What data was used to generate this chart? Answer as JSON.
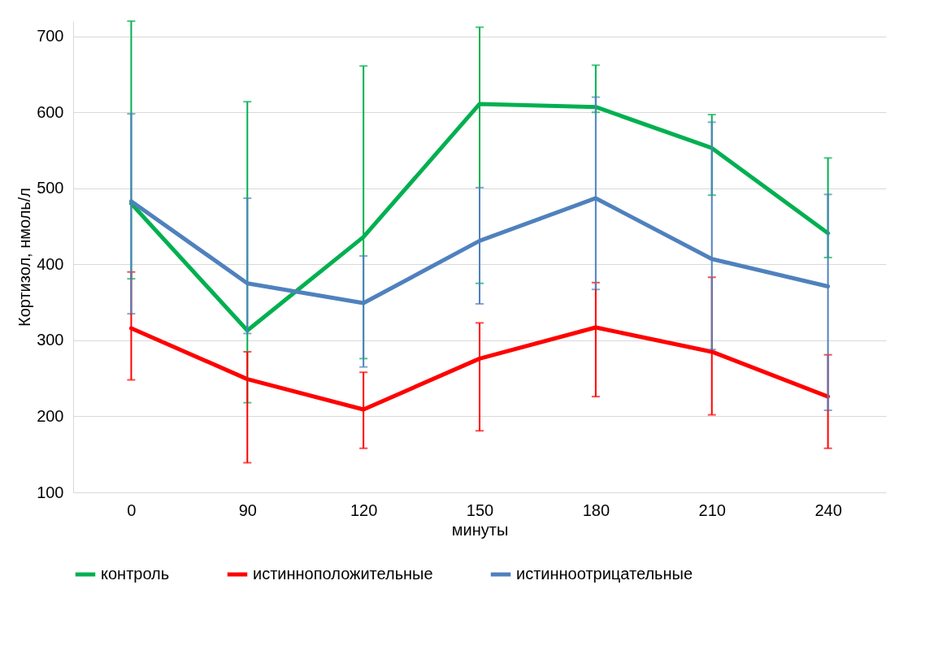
{
  "chart_data": {
    "type": "line",
    "xlabel": "минуты",
    "ylabel": "Кортизол, нмоль/л",
    "categories": [
      "0",
      "90",
      "120",
      "150",
      "180",
      "210",
      "240"
    ],
    "series": [
      {
        "name": "контроль",
        "color": "#00b050",
        "values": [
          480,
          313,
          436,
          611,
          607,
          553,
          441
        ],
        "errors": [
          [
            381,
            720
          ],
          [
            218,
            614
          ],
          [
            276,
            661
          ],
          [
            375,
            712
          ],
          [
            600,
            662
          ],
          [
            491,
            597
          ],
          [
            409,
            540
          ]
        ]
      },
      {
        "name": "истинноположительные",
        "color": "#ff0000",
        "values": [
          316,
          249,
          209,
          276,
          317,
          285,
          226
        ],
        "errors": [
          [
            248,
            390
          ],
          [
            139,
            285
          ],
          [
            158,
            258
          ],
          [
            181,
            323
          ],
          [
            226,
            376
          ],
          [
            202,
            383
          ],
          [
            158,
            281
          ]
        ]
      },
      {
        "name": "истинноотрицательные",
        "color": "#4f81bd",
        "values": [
          483,
          375,
          349,
          431,
          487,
          407,
          371
        ],
        "errors": [
          [
            335,
            598
          ],
          [
            309,
            487
          ],
          [
            265,
            411
          ],
          [
            348,
            501
          ],
          [
            367,
            620
          ],
          [
            288,
            587
          ],
          [
            208,
            492
          ]
        ]
      }
    ],
    "ylim": [
      100,
      720
    ],
    "yticks": [
      100,
      200,
      300,
      400,
      500,
      600,
      700
    ],
    "grid": "y",
    "legend": "bottom",
    "marker": "none",
    "line_style": "solid"
  }
}
